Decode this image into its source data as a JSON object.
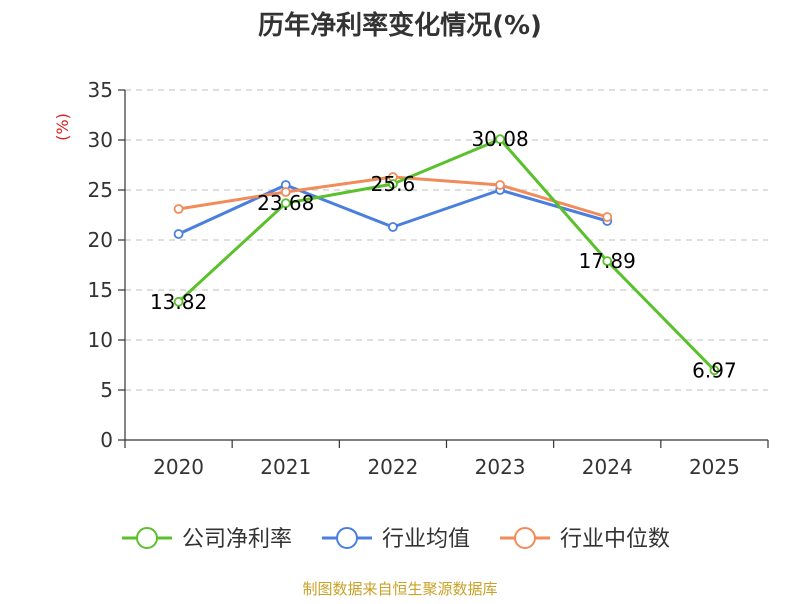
{
  "chart_data": {
    "type": "line",
    "title": "历年净利率变化情况(%)",
    "ylabel": "(%)",
    "xlabel": "",
    "categories": [
      "2020",
      "2021",
      "2022",
      "2023",
      "2024",
      "2025"
    ],
    "ylim": [
      0,
      35
    ],
    "yticks": [
      0,
      5,
      10,
      15,
      20,
      25,
      30,
      35
    ],
    "grid": true,
    "legend_position": "bottom",
    "series": [
      {
        "name": "公司净利率",
        "color": "#5ac02c",
        "values": [
          13.82,
          23.68,
          25.6,
          30.08,
          17.89,
          6.97
        ],
        "labels": [
          "13.82",
          "23.68",
          "25.6",
          "30.08",
          "17.89",
          "6.97"
        ]
      },
      {
        "name": "行业均值",
        "color": "#4a7fe0",
        "values": [
          20.6,
          25.5,
          21.3,
          25.0,
          21.9,
          null
        ],
        "labels": []
      },
      {
        "name": "行业中位数",
        "color": "#f28b5a",
        "values": [
          23.1,
          24.8,
          26.3,
          25.5,
          22.3,
          null
        ],
        "labels": []
      }
    ],
    "colors": {
      "axis": "#333333",
      "grid": "#cccccc",
      "unit_label": "#d42020",
      "source": "#c9a227"
    }
  },
  "source_text": "制图数据来自恒生聚源数据库"
}
